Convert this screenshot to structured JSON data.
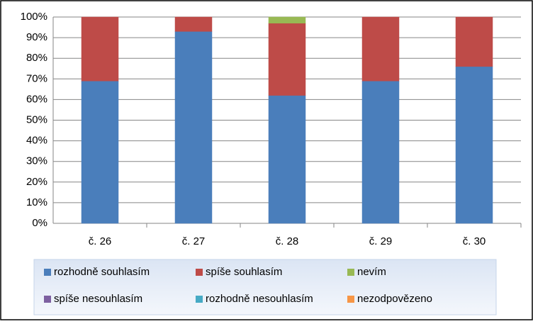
{
  "chart_data": {
    "type": "stacked-bar",
    "categories": [
      "č. 26",
      "č. 27",
      "č. 28",
      "č. 29",
      "č. 30"
    ],
    "series": [
      {
        "name": "rozhodně souhlasím",
        "color": "#4a7ebb",
        "values": [
          69,
          93,
          62,
          69,
          76
        ]
      },
      {
        "name": "spíše souhlasím",
        "color": "#be4b48",
        "values": [
          31,
          7,
          35,
          31,
          24
        ]
      },
      {
        "name": "nevím",
        "color": "#98b954",
        "values": [
          0,
          0,
          3,
          0,
          0
        ]
      },
      {
        "name": "spíše nesouhlasím",
        "color": "#7d60a0",
        "values": [
          0,
          0,
          0,
          0,
          0
        ]
      },
      {
        "name": "rozhodně nesouhlasím",
        "color": "#46aac5",
        "values": [
          0,
          0,
          0,
          0,
          0
        ]
      },
      {
        "name": "nezodpovězeno",
        "color": "#f79646",
        "values": [
          0,
          0,
          0,
          0,
          0
        ]
      }
    ],
    "ylim": [
      0,
      100
    ],
    "yticks": [
      {
        "value": 0,
        "label": "0%"
      },
      {
        "value": 10,
        "label": "10%"
      },
      {
        "value": 20,
        "label": "20%"
      },
      {
        "value": 30,
        "label": "30%"
      },
      {
        "value": 40,
        "label": "40%"
      },
      {
        "value": 50,
        "label": "50%"
      },
      {
        "value": 60,
        "label": "60%"
      },
      {
        "value": 70,
        "label": "70%"
      },
      {
        "value": 80,
        "label": "80%"
      },
      {
        "value": 90,
        "label": "90%"
      },
      {
        "value": 100,
        "label": "100%"
      }
    ],
    "grid": true,
    "legend": "bottom"
  }
}
